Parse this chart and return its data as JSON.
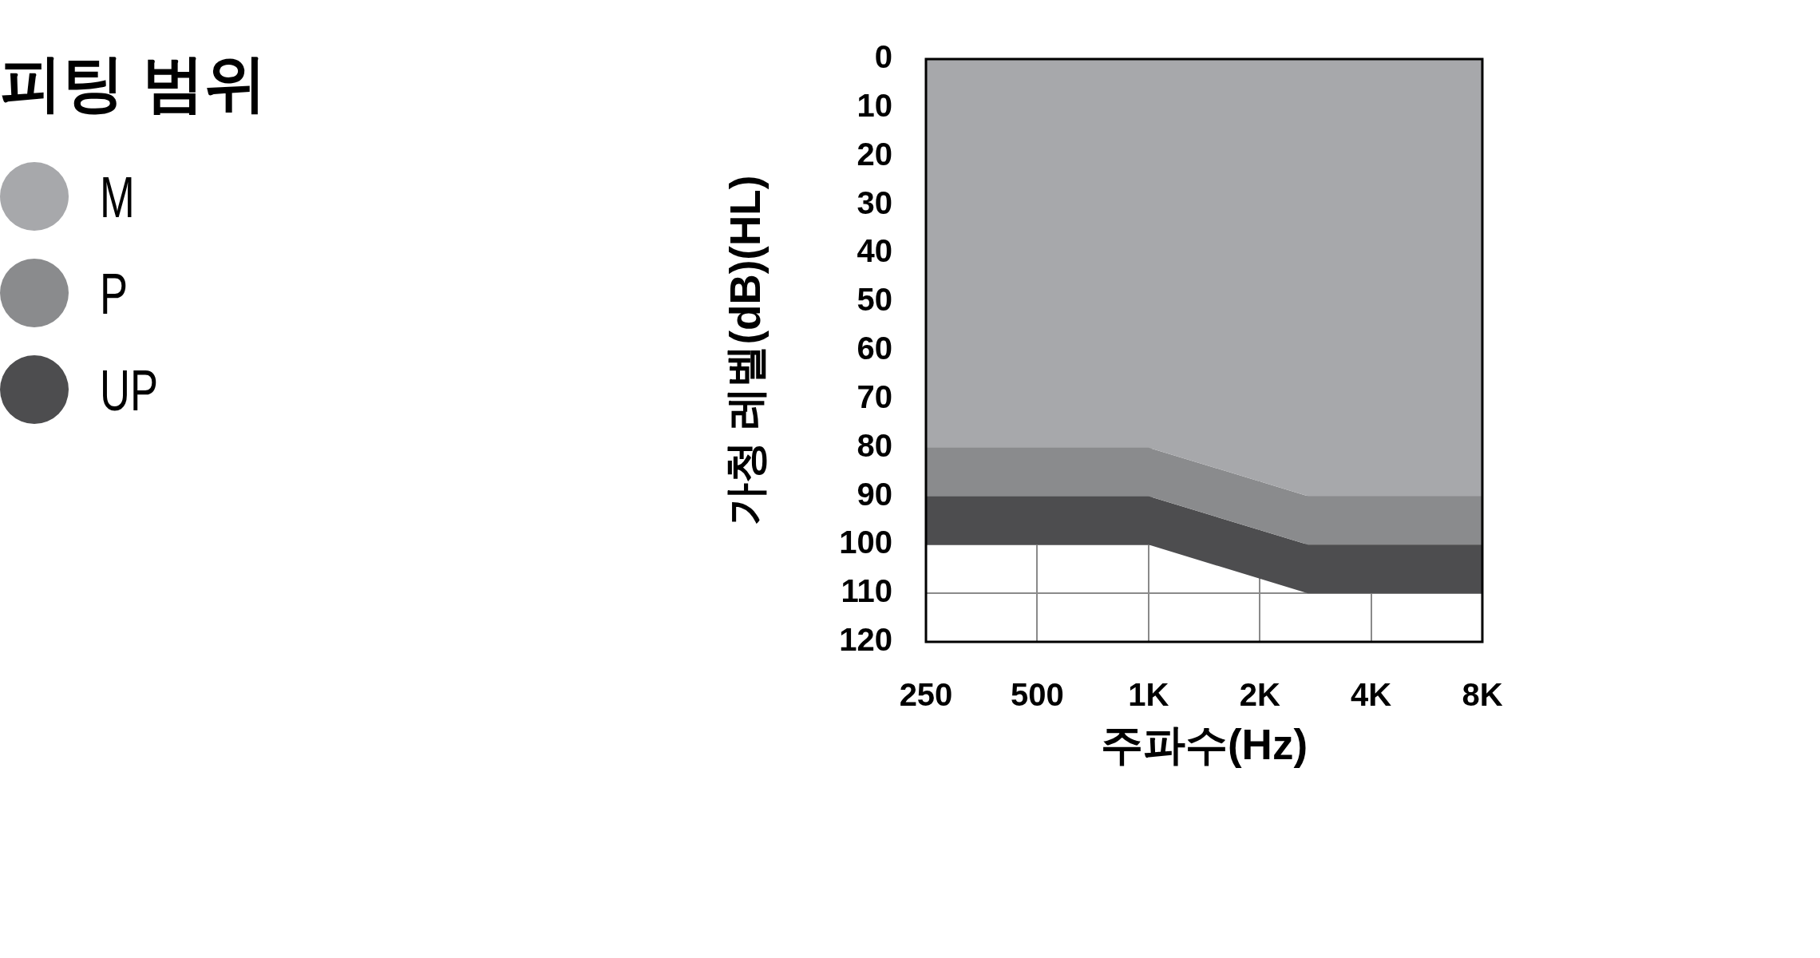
{
  "chart_data": {
    "type": "area",
    "stacked": true,
    "xlabel": "주파수(Hz)",
    "ylabel": "가청 레벨(dB)(HL)",
    "legend_title": "피팅 범위",
    "legend": "top left",
    "grid": true,
    "log": "x",
    "x": [
      250,
      1000,
      2700,
      8000
    ],
    "xlim": [
      250,
      8000
    ],
    "xticks": [
      {
        "value": 250,
        "label": "250"
      },
      {
        "value": 500,
        "label": "500"
      },
      {
        "value": 1000,
        "label": "1K"
      },
      {
        "value": 2000,
        "label": "2K"
      },
      {
        "value": 4000,
        "label": "4K"
      },
      {
        "value": 8000,
        "label": "8K"
      }
    ],
    "ylim": [
      120,
      0
    ],
    "yticks": [
      0,
      10,
      20,
      30,
      40,
      50,
      60,
      70,
      80,
      90,
      100,
      110,
      120
    ],
    "series": [
      {
        "name": "M",
        "color": "#a7a8ab",
        "values": [
          80,
          80,
          90,
          90
        ]
      },
      {
        "name": "P",
        "color": "#8a8b8d",
        "values": [
          10,
          10,
          10,
          10
        ]
      },
      {
        "name": "UP",
        "color": "#4d4d4f",
        "values": [
          10,
          10,
          10,
          10
        ]
      }
    ]
  }
}
